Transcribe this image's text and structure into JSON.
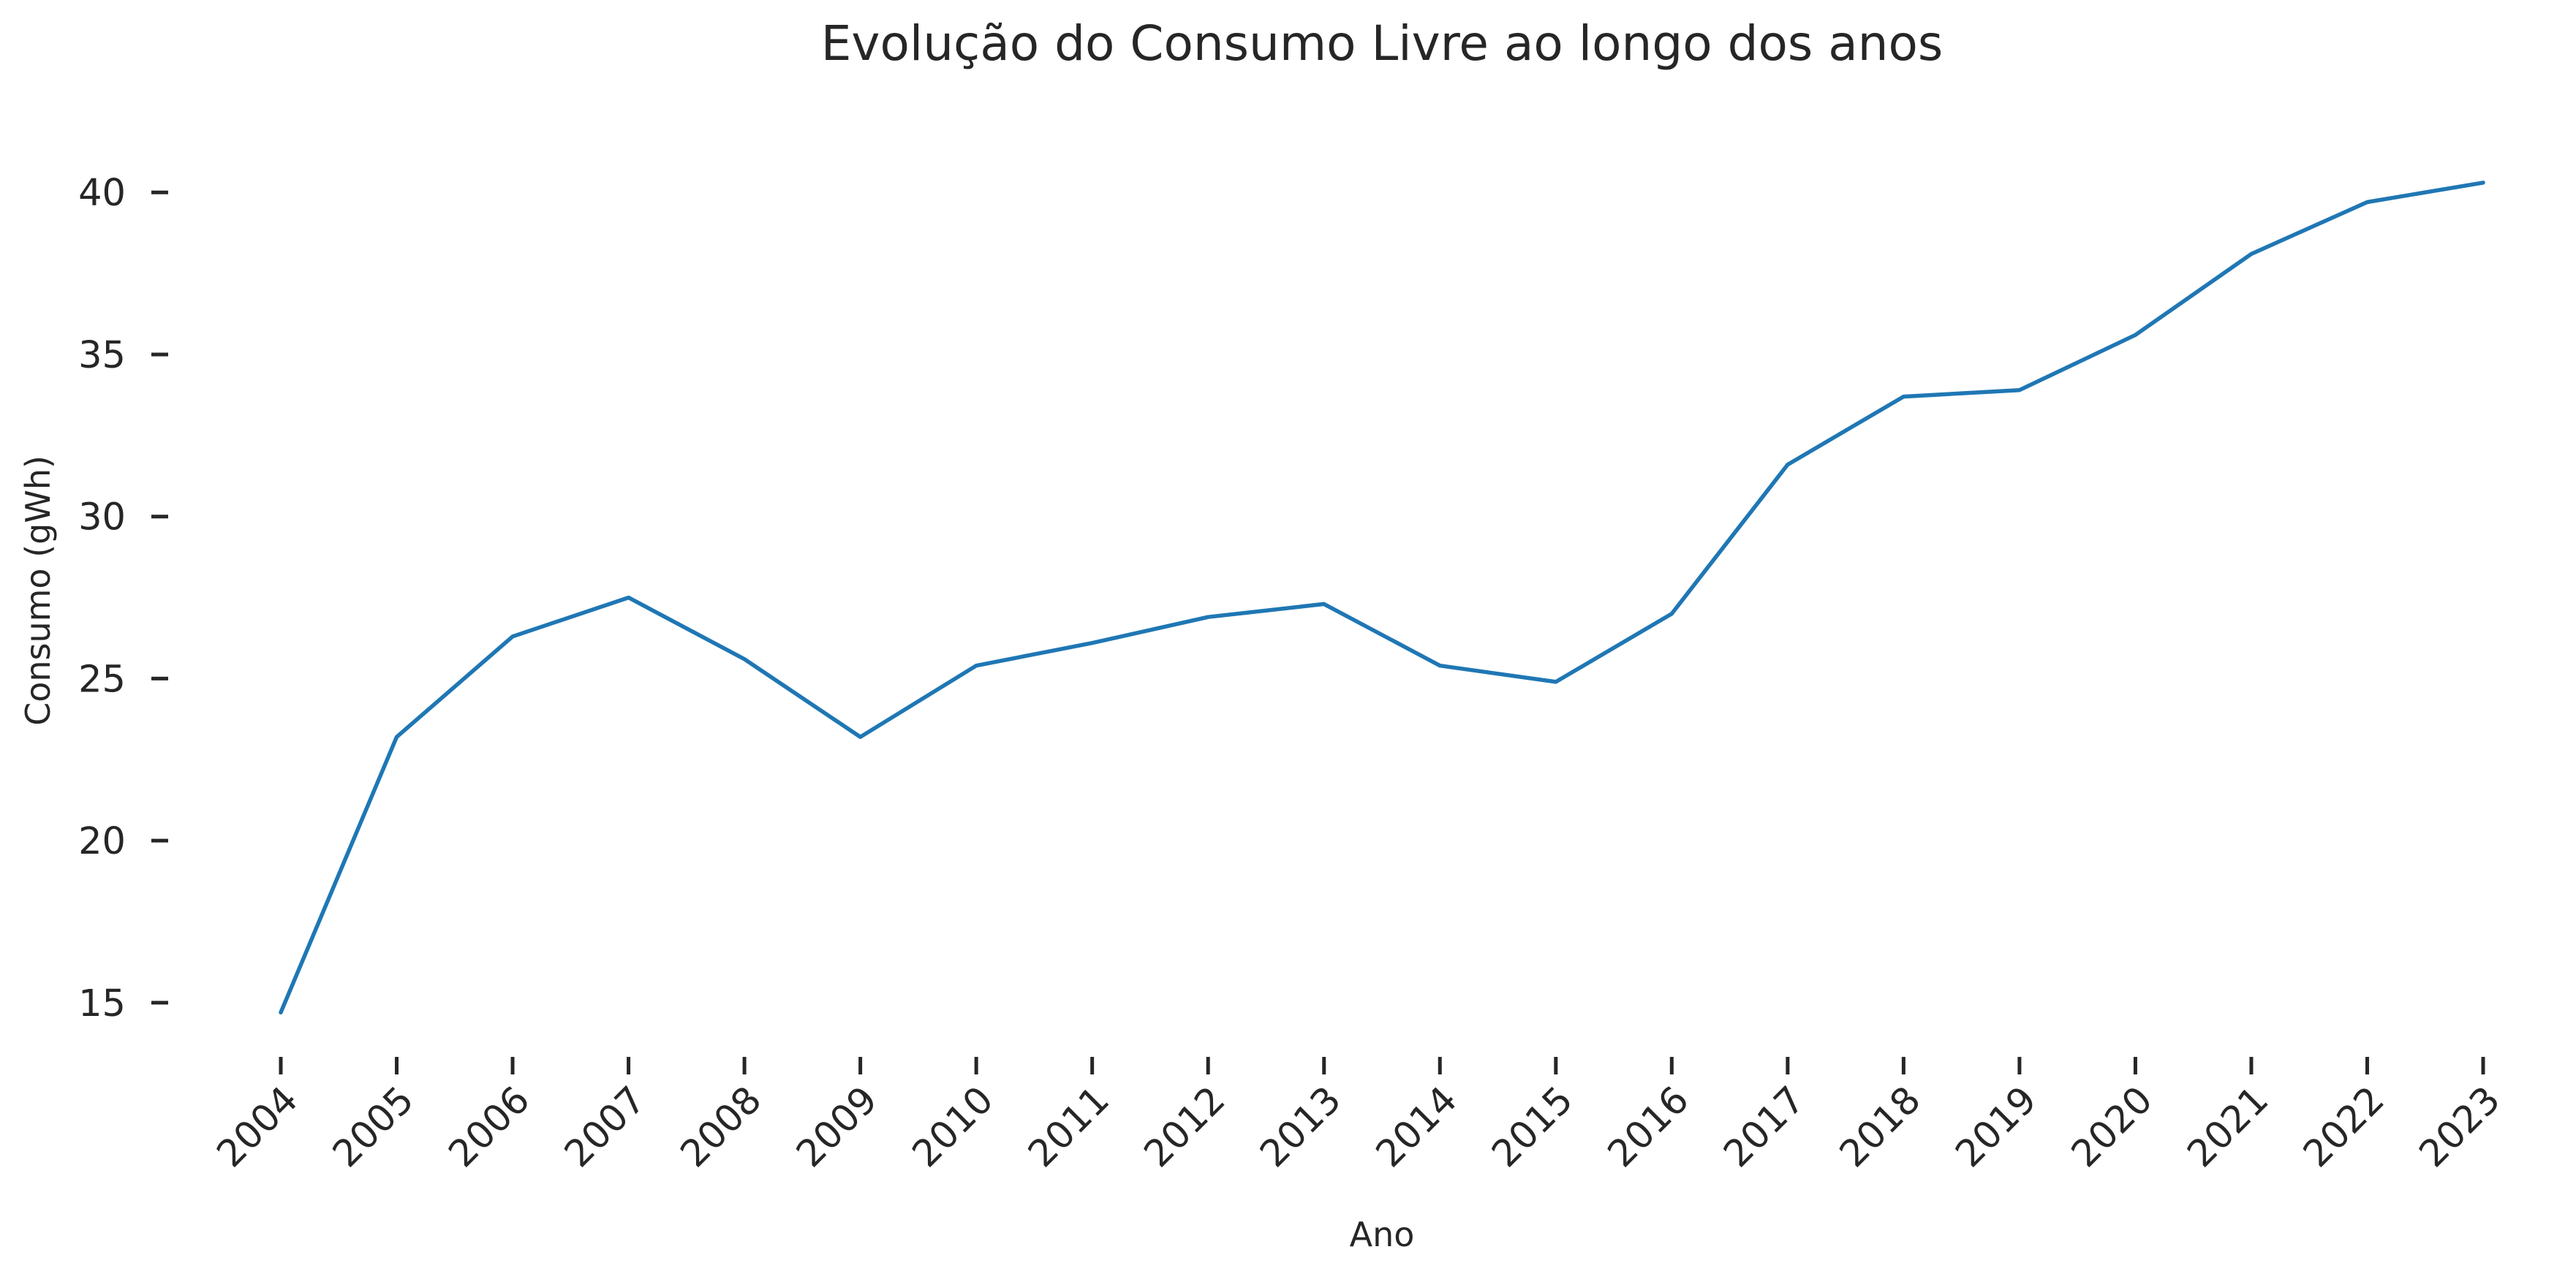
{
  "chart_data": {
    "type": "line",
    "title": "Evolução do Consumo Livre ao longo dos anos",
    "xlabel": "Ano",
    "ylabel": "Consumo (gWh)",
    "x": [
      "2004",
      "2005",
      "2006",
      "2007",
      "2008",
      "2009",
      "2010",
      "2011",
      "2012",
      "2013",
      "2014",
      "2015",
      "2016",
      "2017",
      "2018",
      "2019",
      "2020",
      "2021",
      "2022",
      "2023"
    ],
    "y_ticks": [
      "15",
      "20",
      "25",
      "30",
      "35",
      "40"
    ],
    "ylim": [
      13.6,
      41.2
    ],
    "grid": false,
    "legend": "none",
    "series": [
      {
        "values": [
          14.7,
          23.2,
          26.3,
          27.5,
          25.6,
          23.2,
          25.4,
          26.1,
          26.9,
          27.3,
          25.4,
          24.9,
          27.0,
          31.6,
          33.7,
          33.9,
          35.6,
          38.1,
          39.7,
          40.3
        ],
        "color": "#1f77b4"
      }
    ],
    "colors": {
      "text": "#262626",
      "background": "#ffffff"
    }
  }
}
